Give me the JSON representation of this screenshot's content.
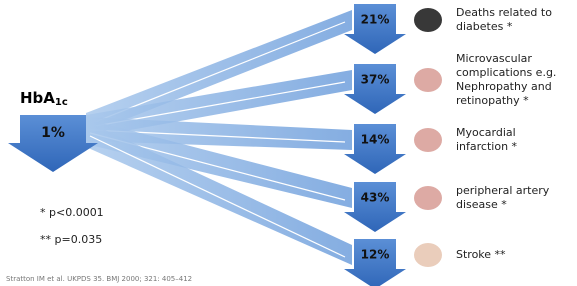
{
  "header": {
    "title": "HbA",
    "title_subscript": "1c",
    "reduction": "1%"
  },
  "outcomes": [
    {
      "percent": "21%",
      "label": [
        "Deaths related to",
        "diabetes *"
      ]
    },
    {
      "percent": "37%",
      "label": [
        "Microvascular",
        "complications e.g.",
        "Nephropathy and",
        "retinopathy *"
      ]
    },
    {
      "percent": "14%",
      "label": [
        "Myocardial",
        "infarction *"
      ]
    },
    {
      "percent": "43%",
      "label": [
        "peripheral artery",
        "disease *"
      ]
    },
    {
      "percent": "12%",
      "label": [
        "Stroke **"
      ]
    }
  ],
  "footnotes": [
    "* p<0.0001",
    "** p=0.035"
  ],
  "citation": "Stratton IM et al. UKPDS 35. BMJ 2000; 321: 405–412"
}
